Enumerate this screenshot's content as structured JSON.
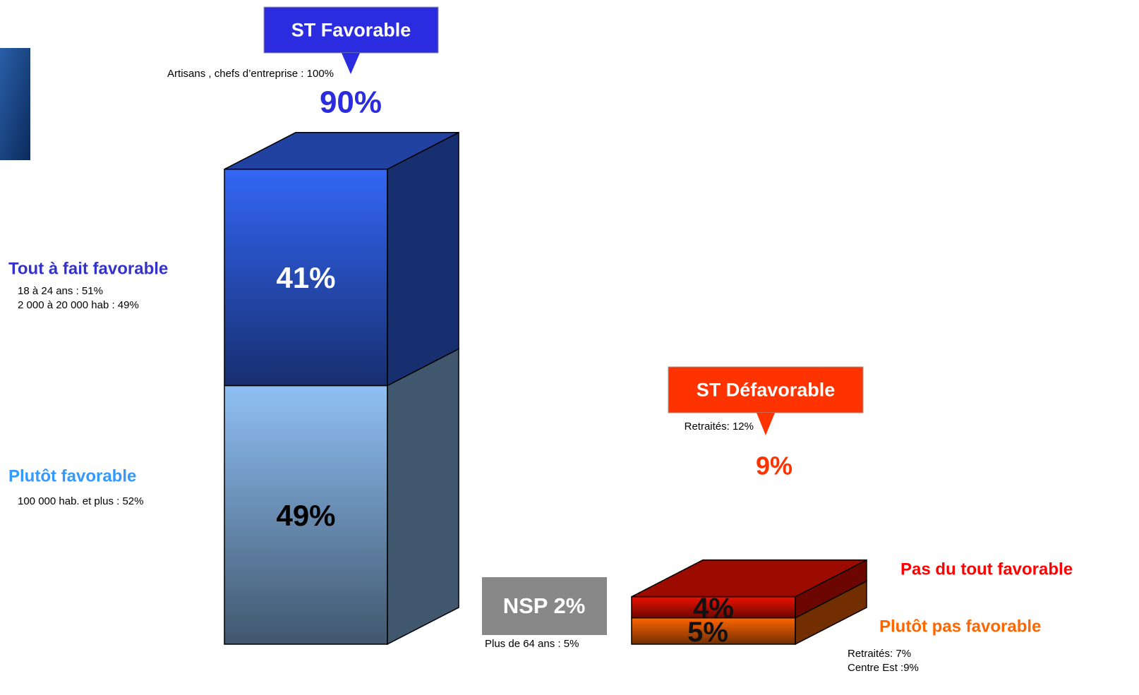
{
  "chart_data": {
    "type": "bar3d-stacked",
    "stacks": [
      {
        "title": "ST Favorable",
        "total": 90,
        "total_label": "90%",
        "note": "Artisans , chefs d’entreprise : 100%",
        "color": "#2b2bdf",
        "segments": [
          {
            "name": "Plutôt favorable",
            "value": 49,
            "value_label": "49%",
            "color": "#8fc0f4",
            "name_color": "#3399ff",
            "label_color": "#000000",
            "notes": [
              "100 000 hab. et plus : 52%"
            ]
          },
          {
            "name": "Tout à fait favorable",
            "value": 41,
            "value_label": "41%",
            "color": "#3366f6",
            "name_color": "#3333cc",
            "label_color": "#ffffff",
            "notes": [
              "18 à 24 ans : 51%",
              "2 000 à 20 000 hab : 49%"
            ]
          }
        ]
      },
      {
        "title": "ST Défavorable",
        "total": 9,
        "total_label": "9%",
        "note": "Retraités: 12%",
        "color": "#ff3300",
        "segments": [
          {
            "name": "Plutôt pas favorable",
            "value": 5,
            "value_label": "5%",
            "color": "#ff6600",
            "name_color": "#ff6600",
            "label_color": "#111111",
            "notes": [
              "Retraités: 7%",
              "Centre Est :9%"
            ]
          },
          {
            "name": "Pas du tout favorable",
            "value": 4,
            "value_label": "4%",
            "color": "#ee1100",
            "name_color": "#ff0000",
            "label_color": "#111111",
            "notes": []
          }
        ]
      }
    ],
    "nsp": {
      "label": "NSP 2%",
      "value": 2,
      "note": "Plus de 64 ans : 5%",
      "color": "#888888"
    }
  }
}
